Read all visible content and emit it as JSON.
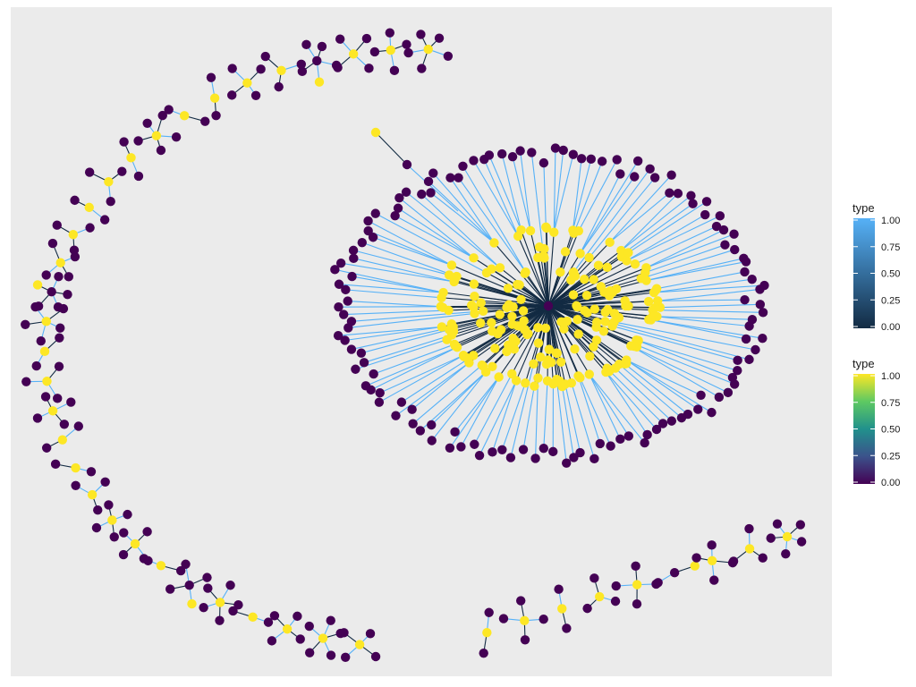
{
  "chart_data": {
    "type": "network",
    "title": "",
    "xlabel": "",
    "ylabel": "",
    "grid": false,
    "background": "#ebebeb",
    "node_palette": "viridis",
    "edge_palette": "blues",
    "legend_placement": "right",
    "legends": [
      {
        "title": "type",
        "aesthetic": "edge colour",
        "scale": "continuous",
        "low_color": "#132b43",
        "high_color": "#56b1f7",
        "breaks": [
          "1.00",
          "0.75",
          "0.50",
          "0.25",
          "0.00"
        ]
      },
      {
        "title": "type",
        "aesthetic": "node fill",
        "scale": "continuous",
        "stops": [
          "#fde725",
          "#5ec962",
          "#21918c",
          "#3b528b",
          "#440154"
        ],
        "breaks": [
          "1.00",
          "0.75",
          "0.50",
          "0.25",
          "0.00"
        ]
      }
    ],
    "node_types": {
      "0": "#440154",
      "1": "#fde725"
    },
    "edge_types": {
      "0": "#132b43",
      "1": "#56b1f7"
    },
    "components": {
      "central_hub": {
        "hub_count": 1,
        "hub_type": 0,
        "inner_leaf_count": 200,
        "inner_leaf_type": 1,
        "outer_leaf_count": 130,
        "outer_leaf_type": 0,
        "extra_chain_type": 1
      },
      "small_component_count": 40
    }
  }
}
